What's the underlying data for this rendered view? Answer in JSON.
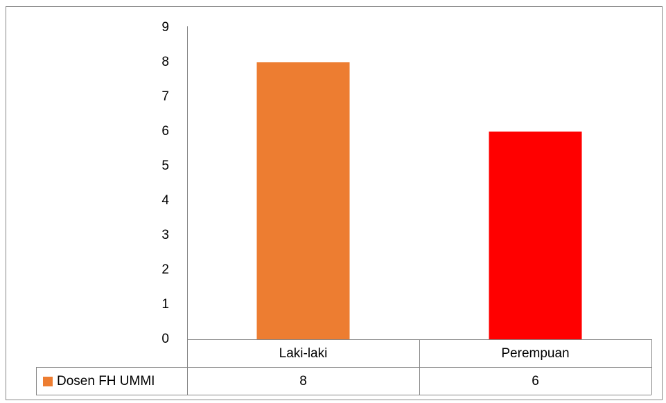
{
  "chart_data": {
    "type": "bar",
    "categories": [
      "Laki-laki",
      "Perempuan"
    ],
    "series": [
      {
        "name": "Dosen FH UMMI",
        "color": "#ed7d31",
        "colors": [
          "#ed7d31",
          "#ff0000"
        ],
        "values": [
          8,
          6
        ]
      }
    ],
    "ylim": [
      0,
      9
    ],
    "yticks": [
      0,
      1,
      2,
      3,
      4,
      5,
      6,
      7,
      8,
      9
    ],
    "grid": false,
    "data_table": true
  }
}
